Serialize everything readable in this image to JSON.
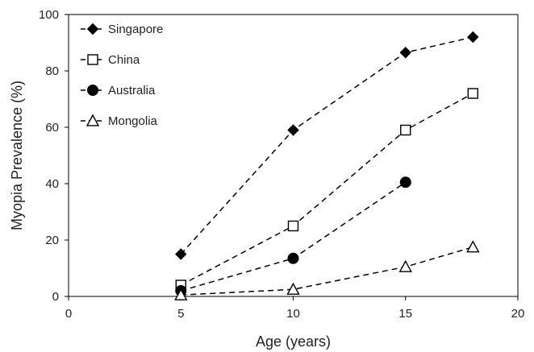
{
  "chart_data": {
    "type": "line",
    "title": "",
    "xlabel": "Age (years)",
    "ylabel": "Myopia Prevalence (%)",
    "xlim": [
      0,
      20
    ],
    "ylim": [
      0,
      100
    ],
    "xticks": [
      0,
      5,
      10,
      15,
      20
    ],
    "yticks": [
      0,
      20,
      40,
      60,
      80,
      100
    ],
    "grid": false,
    "legend_position": "top-left",
    "line_style": "dashed",
    "series": [
      {
        "name": "Singapore",
        "marker": "diamond-filled",
        "x": [
          5,
          10,
          15,
          18
        ],
        "y": [
          15,
          59,
          86.5,
          92
        ]
      },
      {
        "name": "China",
        "marker": "square-open",
        "x": [
          5,
          10,
          15,
          18
        ],
        "y": [
          4,
          25,
          59,
          72
        ]
      },
      {
        "name": "Australia",
        "marker": "circle-filled",
        "x": [
          5,
          10,
          15
        ],
        "y": [
          2,
          13.5,
          40.5
        ]
      },
      {
        "name": "Mongolia",
        "marker": "triangle-open",
        "x": [
          5,
          10,
          15,
          18
        ],
        "y": [
          0.5,
          2.5,
          10.5,
          17.5
        ]
      }
    ]
  }
}
